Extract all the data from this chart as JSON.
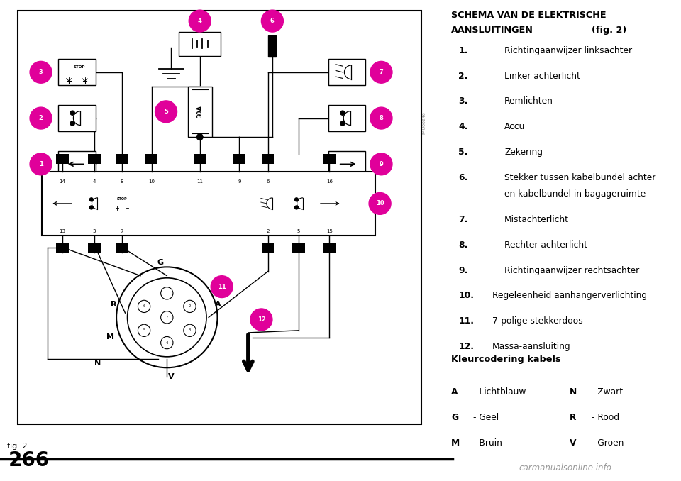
{
  "title_line1_bold": "SCHEMA VAN DE ELEKTRISCHE",
  "title_line2_bold": "AANSLUITINGEN",
  "title_line2_normal": "(fig. 2)",
  "items": [
    {
      "num": "1.",
      "text": "Richtingaanwijzer linksachter",
      "extra": ""
    },
    {
      "num": "2.",
      "text": "Linker achterlicht",
      "extra": ""
    },
    {
      "num": "3.",
      "text": "Remlichten",
      "extra": ""
    },
    {
      "num": "4.",
      "text": "Accu",
      "extra": ""
    },
    {
      "num": "5.",
      "text": "Zekering",
      "extra": ""
    },
    {
      "num": "6.",
      "text": "Stekker tussen kabelbundel achter",
      "extra": "en kabelbundel in bagageruimte"
    },
    {
      "num": "7.",
      "text": "Mistachterlicht",
      "extra": ""
    },
    {
      "num": "8.",
      "text": "Rechter achterlicht",
      "extra": ""
    },
    {
      "num": "9.",
      "text": "Richtingaanwijzer rechtsachter",
      "extra": ""
    },
    {
      "num": "10.",
      "text": "Regeleenheid aanhangerverlichting",
      "extra": ""
    },
    {
      "num": "11.",
      "text": "7-polige stekkerdoos",
      "extra": ""
    },
    {
      "num": "12.",
      "text": "Massa-aansluiting",
      "extra": ""
    }
  ],
  "color_title": "Kleurcodering kabels",
  "color_left": [
    [
      "A",
      "- Lichtblauw"
    ],
    [
      "G",
      "- Geel"
    ],
    [
      "M",
      "- Bruin"
    ]
  ],
  "color_right": [
    [
      "N",
      "- Zwart"
    ],
    [
      "R",
      "- Rood"
    ],
    [
      "V",
      "- Groen"
    ]
  ],
  "fig_label": "fig. 2",
  "page_num": "266",
  "watermark": "P4U00246",
  "magenta": "#e0009a",
  "bg": "#ffffff"
}
